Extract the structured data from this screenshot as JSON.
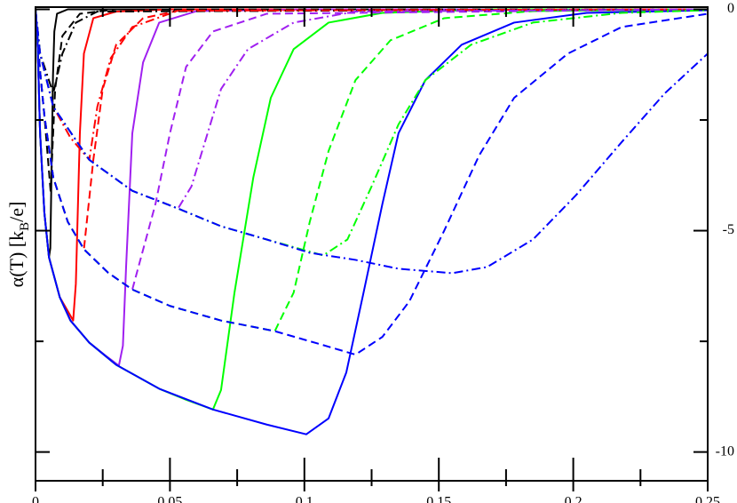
{
  "chart_data": {
    "type": "line",
    "y_label_parts": [
      "α(T)  [k",
      "B",
      "/e]"
    ],
    "xlim": [
      0,
      0.25
    ],
    "xticks": [
      0,
      0.05,
      0.1,
      0.15,
      0.2,
      0.25
    ],
    "xminorticks": [
      0.025,
      0.075,
      0.125,
      0.175,
      0.225
    ],
    "ylim": [
      -10.65,
      0.05
    ],
    "yticks": [
      0,
      -5,
      -10
    ],
    "yminorticks": [
      -2.5,
      -7.5
    ],
    "y_tick_side": "right",
    "series": [
      {
        "color": "#000000",
        "line_style": "solid",
        "x": [
          0,
          0.0007,
          0.0017,
          0.0033,
          0.005,
          0.0055,
          0.006,
          0.0065,
          0.007,
          0.008,
          0.012,
          0.25
        ],
        "values": [
          0,
          -0.6,
          -2.8,
          -4.6,
          -5.6,
          -5.4,
          -3.5,
          -1.5,
          -0.5,
          -0.1,
          0,
          0
        ]
      },
      {
        "color": "#ff0000",
        "line_style": "solid",
        "x": [
          0,
          0.0007,
          0.0017,
          0.0033,
          0.005,
          0.009,
          0.014,
          0.015,
          0.0165,
          0.018,
          0.0215,
          0.03,
          0.05,
          0.25
        ],
        "values": [
          0,
          -0.6,
          -2.8,
          -4.6,
          -5.6,
          -6.5,
          -7.03,
          -6.2,
          -2.8,
          -1.0,
          -0.2,
          -0.05,
          0,
          0
        ]
      },
      {
        "color": "#a020f0",
        "line_style": "solid",
        "x": [
          0,
          0.0007,
          0.0017,
          0.0033,
          0.005,
          0.009,
          0.013,
          0.02,
          0.026,
          0.031,
          0.0325,
          0.0337,
          0.036,
          0.04,
          0.046,
          0.06,
          0.1,
          0.25
        ],
        "values": [
          0,
          -0.6,
          -2.8,
          -4.6,
          -5.6,
          -6.5,
          -7.03,
          -7.53,
          -7.82,
          -8.05,
          -7.6,
          -5.8,
          -2.8,
          -1.2,
          -0.3,
          -0.04,
          0,
          0
        ]
      },
      {
        "color": "#00ff00",
        "line_style": "solid",
        "x": [
          0,
          0.0007,
          0.0017,
          0.0033,
          0.005,
          0.009,
          0.013,
          0.02,
          0.03,
          0.046,
          0.056,
          0.066,
          0.069,
          0.074,
          0.081,
          0.0875,
          0.096,
          0.109,
          0.129,
          0.17,
          0.25
        ],
        "values": [
          0,
          -0.6,
          -2.8,
          -4.6,
          -5.6,
          -6.5,
          -7.03,
          -7.53,
          -8.03,
          -8.57,
          -8.82,
          -9.04,
          -8.6,
          -6.4,
          -3.8,
          -2.0,
          -0.9,
          -0.3,
          -0.08,
          0,
          0
        ]
      },
      {
        "color": "#0000ff",
        "line_style": "solid",
        "x": [
          0,
          0.0007,
          0.0017,
          0.0033,
          0.005,
          0.009,
          0.013,
          0.02,
          0.03,
          0.046,
          0.066,
          0.086,
          0.1007,
          0.109,
          0.1156,
          0.122,
          0.129,
          0.135,
          0.145,
          0.1585,
          0.178,
          0.205,
          0.25
        ],
        "values": [
          0,
          -0.6,
          -2.8,
          -4.6,
          -5.6,
          -6.5,
          -7.03,
          -7.53,
          -8.03,
          -8.57,
          -9.04,
          -9.38,
          -9.6,
          -9.24,
          -8.2,
          -6.4,
          -4.4,
          -2.8,
          -1.6,
          -0.8,
          -0.3,
          -0.08,
          -0.02
        ]
      },
      {
        "color": "#000000",
        "line_style": "dashed",
        "x": [
          0,
          0.0017,
          0.0033,
          0.0056,
          0.0073,
          0.01,
          0.0165,
          0.03,
          0.25
        ],
        "values": [
          0,
          -1.4,
          -2.4,
          -4.1,
          -1.8,
          -0.6,
          -0.1,
          0,
          0
        ]
      },
      {
        "color": "#ff0000",
        "line_style": "dashed",
        "x": [
          0,
          0.0017,
          0.0033,
          0.0066,
          0.012,
          0.018,
          0.0215,
          0.025,
          0.03,
          0.04,
          0.053,
          0.25
        ],
        "values": [
          0,
          -1.4,
          -2.4,
          -3.8,
          -4.8,
          -5.42,
          -3.4,
          -1.8,
          -0.8,
          -0.2,
          -0.03,
          0
        ]
      },
      {
        "color": "#a020f0",
        "line_style": "dashed",
        "x": [
          0,
          0.0017,
          0.0033,
          0.0066,
          0.012,
          0.018,
          0.027,
          0.036,
          0.0446,
          0.05,
          0.056,
          0.066,
          0.086,
          0.25
        ],
        "values": [
          0,
          -1.4,
          -2.4,
          -3.8,
          -4.8,
          -5.42,
          -5.95,
          -6.33,
          -4.4,
          -2.8,
          -1.3,
          -0.5,
          -0.1,
          0
        ]
      },
      {
        "color": "#00ff00",
        "line_style": "dashed",
        "x": [
          0,
          0.0017,
          0.0033,
          0.0066,
          0.012,
          0.018,
          0.027,
          0.036,
          0.05,
          0.069,
          0.089,
          0.096,
          0.102,
          0.109,
          0.119,
          0.132,
          0.152,
          0.185,
          0.25
        ],
        "values": [
          0,
          -1.4,
          -2.4,
          -3.8,
          -4.8,
          -5.42,
          -5.95,
          -6.33,
          -6.7,
          -7.03,
          -7.27,
          -6.4,
          -4.8,
          -3.2,
          -1.6,
          -0.7,
          -0.2,
          -0.04,
          0
        ]
      },
      {
        "color": "#0000ff",
        "line_style": "dashed",
        "x": [
          0,
          0.0017,
          0.0033,
          0.0066,
          0.012,
          0.018,
          0.027,
          0.036,
          0.05,
          0.069,
          0.089,
          0.105,
          0.119,
          0.129,
          0.139,
          0.152,
          0.165,
          0.178,
          0.198,
          0.218,
          0.25
        ],
        "values": [
          0,
          -1.4,
          -2.4,
          -3.8,
          -4.8,
          -5.42,
          -5.95,
          -6.33,
          -6.7,
          -7.03,
          -7.27,
          -7.55,
          -7.8,
          -7.4,
          -6.6,
          -5.0,
          -3.3,
          -2.0,
          -1.0,
          -0.4,
          -0.1
        ]
      },
      {
        "color": "#000000",
        "line_style": "dashdot",
        "x": [
          0,
          0.0017,
          0.0066,
          0.01,
          0.015,
          0.023,
          0.25
        ],
        "values": [
          0,
          -1.0,
          -1.9,
          -1.0,
          -0.3,
          -0.05,
          0
        ]
      },
      {
        "color": "#ff0000",
        "line_style": "dashdot",
        "x": [
          0,
          0.0017,
          0.0066,
          0.013,
          0.02,
          0.023,
          0.028,
          0.036,
          0.053,
          0.25
        ],
        "values": [
          0,
          -1.0,
          -2.2,
          -2.9,
          -3.4,
          -2.2,
          -1.1,
          -0.4,
          -0.03,
          0
        ]
      },
      {
        "color": "#a020f0",
        "line_style": "dashdot",
        "x": [
          0,
          0.0017,
          0.0066,
          0.02,
          0.036,
          0.053,
          0.058,
          0.063,
          0.069,
          0.079,
          0.096,
          0.119,
          0.25
        ],
        "values": [
          0,
          -1.0,
          -2.2,
          -3.4,
          -4.1,
          -4.5,
          -4.0,
          -3.0,
          -1.8,
          -0.9,
          -0.3,
          -0.05,
          0
        ]
      },
      {
        "color": "#00ff00",
        "line_style": "dashdot",
        "x": [
          0,
          0.0017,
          0.0066,
          0.02,
          0.036,
          0.053,
          0.069,
          0.086,
          0.107,
          0.116,
          0.125,
          0.135,
          0.145,
          0.162,
          0.185,
          0.218,
          0.25
        ],
        "values": [
          0,
          -1.0,
          -2.2,
          -3.4,
          -4.1,
          -4.5,
          -4.9,
          -5.2,
          -5.56,
          -5.2,
          -4.0,
          -2.6,
          -1.6,
          -0.8,
          -0.3,
          -0.08,
          -0.02
        ]
      },
      {
        "color": "#0000ff",
        "line_style": "dashdot",
        "x": [
          0,
          0.0017,
          0.0066,
          0.02,
          0.036,
          0.053,
          0.069,
          0.086,
          0.102,
          0.119,
          0.135,
          0.155,
          0.168,
          0.185,
          0.201,
          0.218,
          0.234,
          0.25
        ],
        "values": [
          0,
          -1.0,
          -2.2,
          -3.4,
          -4.1,
          -4.5,
          -4.9,
          -5.2,
          -5.5,
          -5.66,
          -5.86,
          -5.96,
          -5.82,
          -5.2,
          -4.2,
          -3.0,
          -1.9,
          -1.0
        ]
      }
    ]
  }
}
